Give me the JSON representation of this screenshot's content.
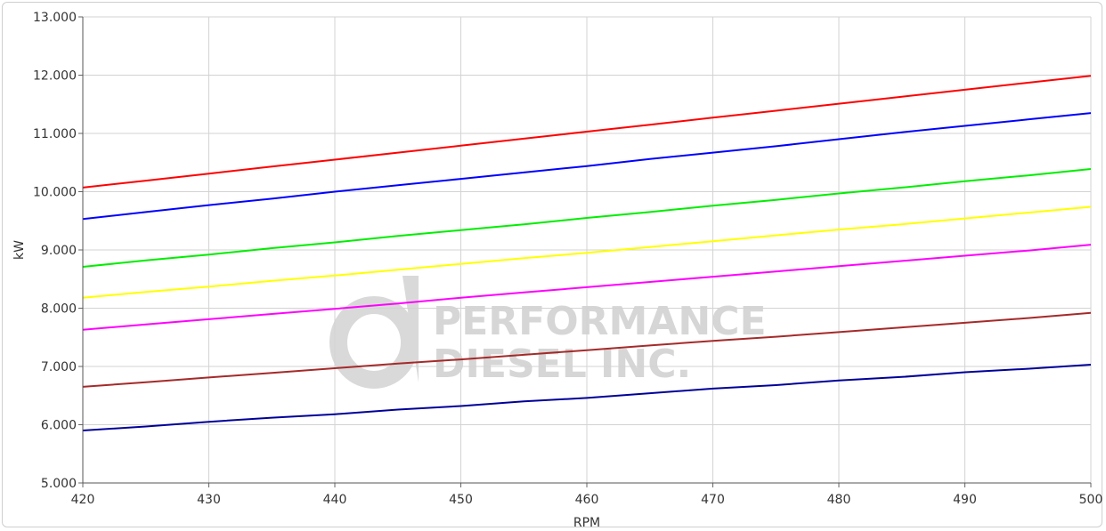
{
  "chart_data": {
    "type": "line",
    "xlabel": "RPM",
    "ylabel": "kW",
    "xlim": [
      420,
      500
    ],
    "ylim": [
      5,
      13
    ],
    "x_ticks": [
      "420",
      "430",
      "440",
      "450",
      "460",
      "470",
      "480",
      "490",
      "500"
    ],
    "y_ticks": [
      "5.000",
      "6.000",
      "7.000",
      "8.000",
      "9.000",
      "10.000",
      "11.000",
      "12.000",
      "13.000"
    ],
    "grid": true,
    "watermark": {
      "line1": "PERFORMANCE",
      "line2": "DIESEL INC."
    },
    "x": [
      420,
      425,
      430,
      435,
      440,
      445,
      450,
      455,
      460,
      465,
      470,
      475,
      480,
      485,
      490,
      495,
      500
    ],
    "series": [
      {
        "color": "#ff0000",
        "values": [
          10.07,
          10.19,
          10.31,
          10.43,
          10.55,
          10.67,
          10.79,
          10.91,
          11.03,
          11.15,
          11.27,
          11.39,
          11.51,
          11.63,
          11.75,
          11.87,
          11.99
        ]
      },
      {
        "color": "#0000ff",
        "values": [
          9.53,
          9.65,
          9.77,
          9.88,
          10.0,
          10.11,
          10.22,
          10.33,
          10.44,
          10.56,
          10.67,
          10.78,
          10.9,
          11.02,
          11.13,
          11.24,
          11.35
        ]
      },
      {
        "color": "#00ee00",
        "values": [
          8.71,
          8.82,
          8.92,
          9.03,
          9.13,
          9.24,
          9.34,
          9.44,
          9.55,
          9.65,
          9.76,
          9.86,
          9.97,
          10.07,
          10.18,
          10.28,
          10.39
        ]
      },
      {
        "color": "#ffff00",
        "values": [
          8.18,
          8.28,
          8.37,
          8.47,
          8.56,
          8.66,
          8.76,
          8.86,
          8.95,
          9.05,
          9.15,
          9.25,
          9.35,
          9.44,
          9.54,
          9.64,
          9.74
        ]
      },
      {
        "color": "#ff00ff",
        "values": [
          7.63,
          7.72,
          7.81,
          7.9,
          7.99,
          8.08,
          8.18,
          8.27,
          8.36,
          8.45,
          8.54,
          8.63,
          8.72,
          8.81,
          8.9,
          8.99,
          9.09
        ]
      },
      {
        "color": "#a52a2a",
        "values": [
          6.65,
          6.73,
          6.81,
          6.89,
          6.97,
          7.05,
          7.12,
          7.2,
          7.28,
          7.36,
          7.44,
          7.51,
          7.59,
          7.67,
          7.75,
          7.83,
          7.92
        ]
      },
      {
        "color": "#000099",
        "values": [
          5.9,
          5.97,
          6.05,
          6.12,
          6.18,
          6.26,
          6.32,
          6.4,
          6.46,
          6.54,
          6.62,
          6.68,
          6.76,
          6.82,
          6.9,
          6.96,
          7.03
        ]
      }
    ]
  }
}
